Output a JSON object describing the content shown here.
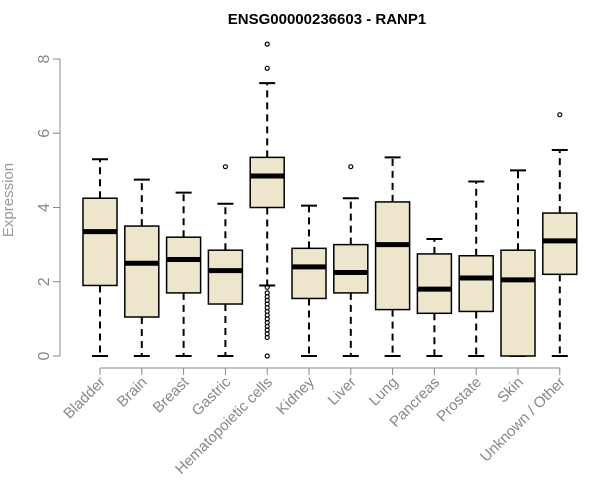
{
  "chart_data": {
    "type": "box",
    "title": "ENSG00000236603 - RANP1",
    "ylabel": "Expression",
    "xlabel": "",
    "ylim": [
      0,
      8.4
    ],
    "yticks": [
      "0",
      "2",
      "4",
      "6",
      "8"
    ],
    "colors": {
      "box_fill": "#EDE6CC",
      "box_stroke": "#000000",
      "median": "#000000",
      "axis": "#888888"
    },
    "categories": [
      {
        "name": "Bladder",
        "min": 0,
        "q1": 1.9,
        "median": 3.35,
        "q3": 4.25,
        "max": 5.3,
        "outliers": []
      },
      {
        "name": "Brain",
        "min": 0,
        "q1": 1.05,
        "median": 2.5,
        "q3": 3.5,
        "max": 4.75,
        "outliers": []
      },
      {
        "name": "Breast",
        "min": 0,
        "q1": 1.7,
        "median": 2.6,
        "q3": 3.2,
        "max": 4.4,
        "outliers": []
      },
      {
        "name": "Gastric",
        "min": 0,
        "q1": 1.4,
        "median": 2.3,
        "q3": 2.85,
        "max": 4.1,
        "outliers": [
          5.1
        ]
      },
      {
        "name": "Hematopoietic cells",
        "min": 1.9,
        "q1": 4.0,
        "median": 4.85,
        "q3": 5.35,
        "max": 7.35,
        "outliers": [
          8.4,
          7.75,
          1.85,
          1.7,
          1.6,
          1.5,
          1.4,
          1.3,
          1.2,
          1.1,
          1.0,
          0.9,
          0.8,
          0.7,
          0.6,
          0.5,
          0.0
        ]
      },
      {
        "name": "Kidney",
        "min": 0,
        "q1": 1.55,
        "median": 2.4,
        "q3": 2.9,
        "max": 4.05,
        "outliers": []
      },
      {
        "name": "Liver",
        "min": 0,
        "q1": 1.7,
        "median": 2.25,
        "q3": 3.0,
        "max": 4.25,
        "outliers": [
          5.1
        ]
      },
      {
        "name": "Lung",
        "min": 0,
        "q1": 1.25,
        "median": 3.0,
        "q3": 4.15,
        "max": 5.35,
        "outliers": []
      },
      {
        "name": "Pancreas",
        "min": 0,
        "q1": 1.15,
        "median": 1.8,
        "q3": 2.75,
        "max": 3.15,
        "outliers": []
      },
      {
        "name": "Prostate",
        "min": 0,
        "q1": 1.2,
        "median": 2.1,
        "q3": 2.7,
        "max": 4.7,
        "outliers": []
      },
      {
        "name": "Skin",
        "min": 0,
        "q1": 0.0,
        "median": 2.05,
        "q3": 2.85,
        "max": 5.0,
        "outliers": []
      },
      {
        "name": "Unknown / Other",
        "min": 0,
        "q1": 2.2,
        "median": 3.1,
        "q3": 3.85,
        "max": 5.55,
        "outliers": [
          6.5
        ]
      }
    ]
  }
}
